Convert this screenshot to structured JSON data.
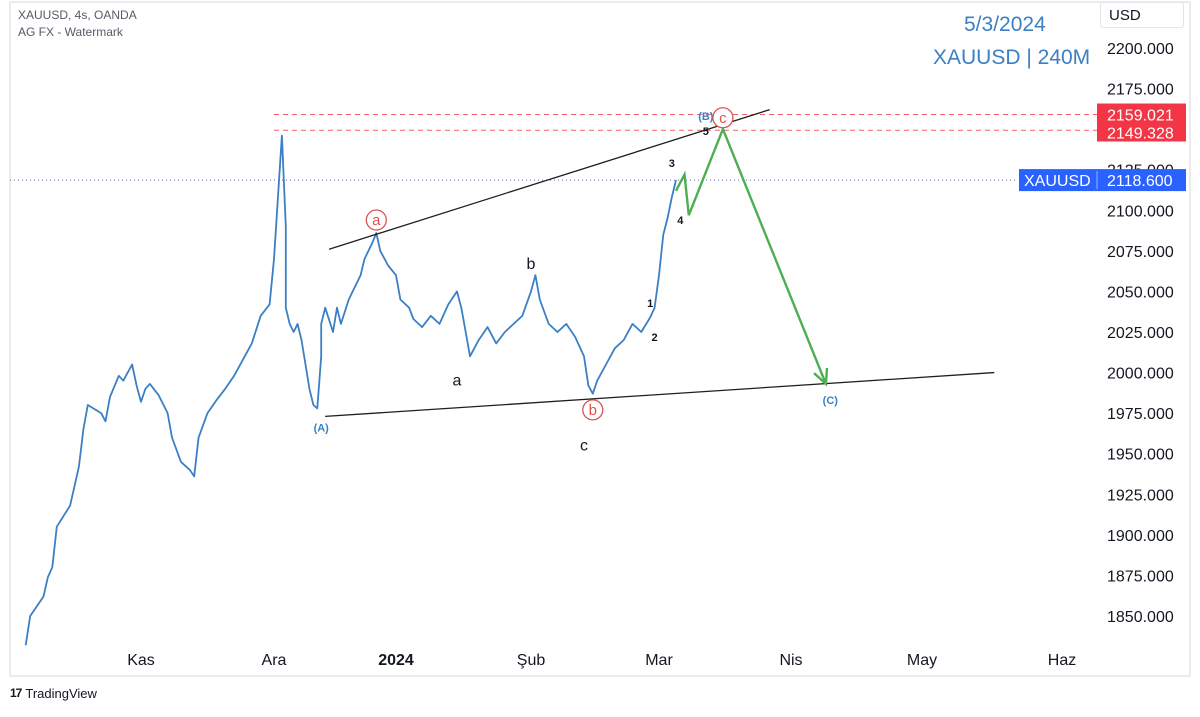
{
  "header": {
    "line1": "XAUUSD, 4s, OANDA",
    "line2": "AG FX - Watermark"
  },
  "annotations": {
    "date": "5/3/2024",
    "symbol_timeframe": "XAUUSD | 240M"
  },
  "currency_button": "USD",
  "brand": {
    "logo": "17",
    "name": "TradingView"
  },
  "colors": {
    "price_line": "#3b7fc4",
    "current_price_tag": "#2962ff",
    "level_tag": "#f23645",
    "projection": "#4caf50",
    "wave_circle": "#d9534f",
    "corrective_label": "#3b7fc4"
  },
  "chart_data": {
    "type": "line",
    "title": "",
    "xlabel": "",
    "ylabel": "",
    "ylim": [
      1837,
      2212
    ],
    "x_ticks": [
      "Kas",
      "Ara",
      "2024",
      "Şub",
      "Mar",
      "Nis",
      "May",
      "Haz"
    ],
    "y_ticks": [
      "2200.000",
      "2175.000",
      "2150.000",
      "2125.000",
      "2100.000",
      "2075.000",
      "2050.000",
      "2025.000",
      "2000.000",
      "1975.000",
      "1950.000",
      "1925.000",
      "1900.000",
      "1875.000",
      "1850.000"
    ],
    "series": [
      {
        "values": [
          [
            "2023-10-06",
            1832
          ],
          [
            "2023-10-07",
            1850
          ],
          [
            "2023-10-10",
            1862
          ],
          [
            "2023-10-11",
            1874
          ],
          [
            "2023-10-12",
            1880
          ],
          [
            "2023-10-13",
            1905
          ],
          [
            "2023-10-16",
            1918
          ],
          [
            "2023-10-17",
            1930
          ],
          [
            "2023-10-18",
            1942
          ],
          [
            "2023-10-19",
            1965
          ],
          [
            "2023-10-20",
            1980
          ],
          [
            "2023-10-23",
            1975
          ],
          [
            "2023-10-24",
            1970
          ],
          [
            "2023-10-25",
            1985
          ],
          [
            "2023-10-27",
            1998
          ],
          [
            "2023-10-28",
            1995
          ],
          [
            "2023-10-30",
            2005
          ],
          [
            "2023-10-31",
            1992
          ],
          [
            "2023-11-01",
            1982
          ],
          [
            "2023-11-02",
            1990
          ],
          [
            "2023-11-03",
            1993
          ],
          [
            "2023-11-05",
            1986
          ],
          [
            "2023-11-07",
            1975
          ],
          [
            "2023-11-08",
            1960
          ],
          [
            "2023-11-10",
            1945
          ],
          [
            "2023-11-12",
            1940
          ],
          [
            "2023-11-13",
            1936
          ],
          [
            "2023-11-14",
            1960
          ],
          [
            "2023-11-16",
            1975
          ],
          [
            "2023-11-18",
            1983
          ],
          [
            "2023-11-20",
            1990
          ],
          [
            "2023-11-22",
            1998
          ],
          [
            "2023-11-24",
            2008
          ],
          [
            "2023-11-26",
            2018
          ],
          [
            "2023-11-28",
            2035
          ],
          [
            "2023-11-30",
            2042
          ],
          [
            "2023-12-01",
            2070
          ],
          [
            "2023-12-03",
            2146
          ],
          [
            "2023-12-04",
            2090
          ],
          [
            "2023-12-04",
            2040
          ],
          [
            "2023-12-05",
            2030
          ],
          [
            "2023-12-06",
            2025
          ],
          [
            "2023-12-07",
            2030
          ],
          [
            "2023-12-08",
            2020
          ],
          [
            "2023-12-09",
            2005
          ],
          [
            "2023-12-10",
            1990
          ],
          [
            "2023-12-11",
            1980
          ],
          [
            "2023-12-12",
            1978
          ],
          [
            "2023-12-13",
            2010
          ],
          [
            "2023-12-13",
            2030
          ],
          [
            "2023-12-14",
            2040
          ],
          [
            "2023-12-16",
            2025
          ],
          [
            "2023-12-17",
            2040
          ],
          [
            "2023-12-18",
            2030
          ],
          [
            "2023-12-20",
            2045
          ],
          [
            "2023-12-21",
            2050
          ],
          [
            "2023-12-23",
            2060
          ],
          [
            "2023-12-24",
            2070
          ],
          [
            "2023-12-26",
            2080
          ],
          [
            "2023-12-27",
            2086
          ],
          [
            "2023-12-28",
            2075
          ],
          [
            "2023-12-30",
            2066
          ],
          [
            "2024-01-01",
            2060
          ],
          [
            "2024-01-02",
            2045
          ],
          [
            "2024-01-04",
            2040
          ],
          [
            "2024-01-05",
            2033
          ],
          [
            "2024-01-07",
            2028
          ],
          [
            "2024-01-09",
            2035
          ],
          [
            "2024-01-11",
            2030
          ],
          [
            "2024-01-13",
            2042
          ],
          [
            "2024-01-15",
            2050
          ],
          [
            "2024-01-16",
            2040
          ],
          [
            "2024-01-17",
            2025
          ],
          [
            "2024-01-18",
            2010
          ],
          [
            "2024-01-20",
            2020
          ],
          [
            "2024-01-22",
            2028
          ],
          [
            "2024-01-24",
            2018
          ],
          [
            "2024-01-26",
            2025
          ],
          [
            "2024-01-28",
            2030
          ],
          [
            "2024-01-30",
            2035
          ],
          [
            "2024-02-01",
            2050
          ],
          [
            "2024-02-02",
            2060
          ],
          [
            "2024-02-03",
            2045
          ],
          [
            "2024-02-05",
            2030
          ],
          [
            "2024-02-07",
            2025
          ],
          [
            "2024-02-09",
            2030
          ],
          [
            "2024-02-11",
            2022
          ],
          [
            "2024-02-13",
            2010
          ],
          [
            "2024-02-14",
            1992
          ],
          [
            "2024-02-15",
            1987
          ],
          [
            "2024-02-16",
            1995
          ],
          [
            "2024-02-18",
            2005
          ],
          [
            "2024-02-20",
            2015
          ],
          [
            "2024-02-22",
            2020
          ],
          [
            "2024-02-24",
            2030
          ],
          [
            "2024-02-26",
            2025
          ],
          [
            "2024-02-28",
            2034
          ],
          [
            "2024-02-29",
            2040
          ],
          [
            "2024-03-01",
            2060
          ],
          [
            "2024-03-02",
            2085
          ],
          [
            "2024-03-03",
            2095
          ],
          [
            "2024-03-04",
            2108
          ],
          [
            "2024-03-05",
            2118.6
          ]
        ]
      }
    ],
    "price_levels": [
      {
        "value": 2159.021,
        "label": "2159.021"
      },
      {
        "value": 2149.328,
        "label": "2149.328"
      }
    ],
    "last_price": {
      "value": 2118.6,
      "label": "2118.600",
      "symbol": "XAUUSD"
    },
    "trendlines": [
      {
        "from": [
          "2023-12-15",
          2076
        ],
        "to": [
          "2024-03-27",
          2162
        ]
      },
      {
        "from": [
          "2023-12-14",
          1973
        ],
        "to": [
          "2024-05-17",
          2000
        ]
      }
    ],
    "projection_path": [
      [
        "2024-03-05",
        2112
      ],
      [
        "2024-03-07",
        2122
      ],
      [
        "2024-03-08",
        2097
      ],
      [
        "2024-03-16",
        2150
      ],
      [
        "2024-04-09",
        1993
      ]
    ],
    "wave_labels": [
      {
        "text": "(A)",
        "style": "corrective",
        "at": [
          "2023-12-13",
          1966
        ]
      },
      {
        "text": "a",
        "style": "circled",
        "at": [
          "2023-12-27",
          2094
        ]
      },
      {
        "text": "a",
        "style": "plain",
        "at": [
          "2024-01-15",
          1995
        ]
      },
      {
        "text": "b",
        "style": "plain",
        "at": [
          "2024-02-01",
          2067
        ]
      },
      {
        "text": "c",
        "style": "plain",
        "at": [
          "2024-02-13",
          1955
        ]
      },
      {
        "text": "b",
        "style": "circled",
        "at": [
          "2024-02-15",
          1977
        ]
      },
      {
        "text": "1",
        "style": "small",
        "at": [
          "2024-02-28",
          2043
        ]
      },
      {
        "text": "2",
        "style": "small",
        "at": [
          "2024-02-29",
          2022
        ]
      },
      {
        "text": "3",
        "style": "small",
        "at": [
          "2024-03-04",
          2129
        ]
      },
      {
        "text": "4",
        "style": "small",
        "at": [
          "2024-03-06",
          2094
        ]
      },
      {
        "text": "5",
        "style": "small",
        "at": [
          "2024-03-12",
          2149
        ]
      },
      {
        "text": "(B)",
        "style": "corrective",
        "at": [
          "2024-03-12",
          2158
        ]
      },
      {
        "text": "c",
        "style": "circled",
        "at": [
          "2024-03-16",
          2157
        ]
      },
      {
        "text": "(C)",
        "style": "corrective",
        "at": [
          "2024-04-10",
          1983
        ]
      }
    ],
    "grid": false,
    "legend": "none"
  }
}
